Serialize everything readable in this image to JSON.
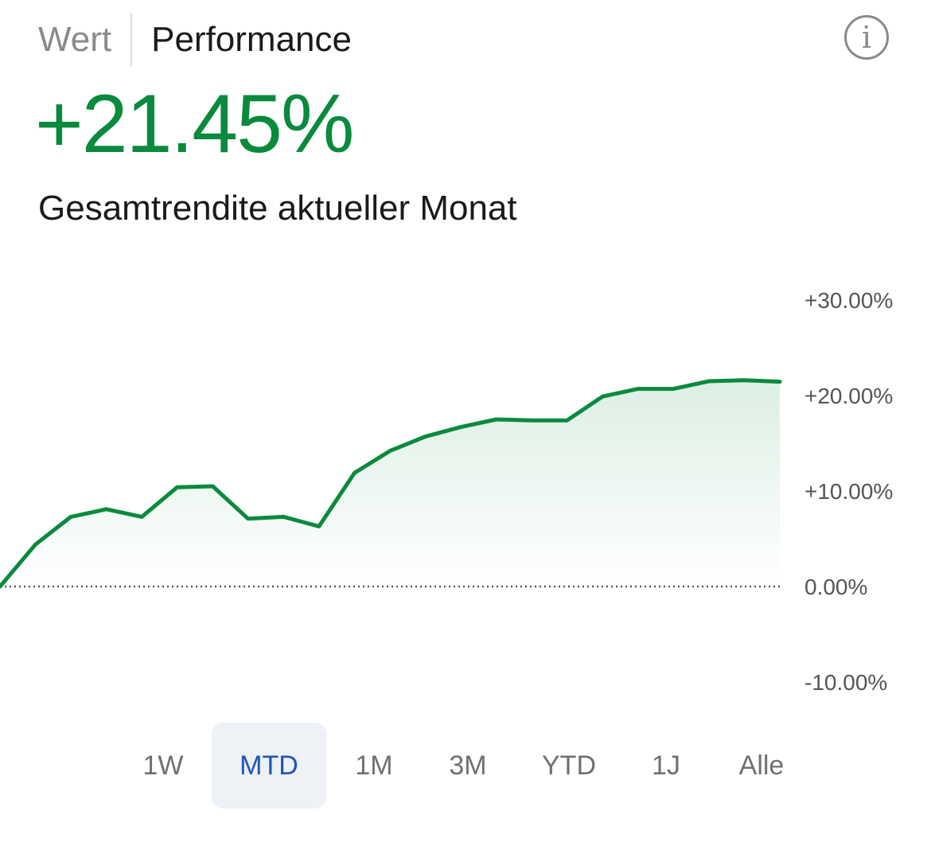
{
  "header": {
    "tabs": [
      {
        "label": "Wert",
        "active": false
      },
      {
        "label": "Performance",
        "active": true
      }
    ],
    "info_icon": "info-icon",
    "info_glyph": "i"
  },
  "summary": {
    "value": "+21.45%",
    "label": "Gesamtrendite aktueller Monat",
    "color": "#0a8a3d"
  },
  "range_selector": {
    "options": [
      "1W",
      "MTD",
      "1M",
      "3M",
      "YTD",
      "1J",
      "Alle"
    ],
    "selected": "MTD"
  },
  "chart_data": {
    "type": "area",
    "y_ticks": [
      {
        "value": 30,
        "label": "+30.00%"
      },
      {
        "value": 20,
        "label": "+20.00%"
      },
      {
        "value": 10,
        "label": "+10.00%"
      },
      {
        "value": 0,
        "label": "0.00%"
      },
      {
        "value": -10,
        "label": "-10.00%"
      }
    ],
    "ylim": [
      -10,
      30
    ],
    "baseline": 0,
    "baseline_style": "dotted",
    "line_color": "#0a8a3d",
    "series": [
      {
        "values": [
          0.0,
          4.4,
          7.3,
          8.1,
          7.3,
          10.4,
          10.5,
          7.1,
          7.3,
          6.3,
          11.9,
          14.2,
          15.7,
          16.7,
          17.5,
          17.4,
          17.4,
          19.9,
          20.7,
          20.7,
          21.5,
          21.6,
          21.45
        ]
      }
    ]
  }
}
